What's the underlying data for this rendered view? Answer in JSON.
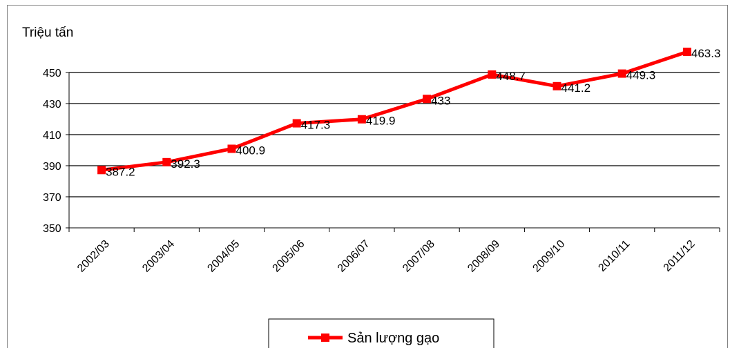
{
  "chart_data": {
    "type": "line",
    "ylabel": "Triệu tấn",
    "xlabel": "",
    "title": "",
    "categories": [
      "2002/03",
      "2003/04",
      "2004/05",
      "2005/06",
      "2006/07",
      "2007/08",
      "2008/09",
      "2009/10",
      "2010/11",
      "2011/12"
    ],
    "series": [
      {
        "name": "Sản lượng gạo",
        "values": [
          387.2,
          392.3,
          400.9,
          417.3,
          419.9,
          433,
          448.7,
          441.2,
          449.3,
          463.3
        ],
        "labels": [
          "387.2",
          "392.3",
          "400.9",
          "417.3",
          "419.9",
          "433",
          "448.7",
          "441.2",
          "449.3",
          "463.3"
        ],
        "color": "#ff0000",
        "marker": "square"
      }
    ],
    "ylim": [
      350,
      450
    ],
    "yticks": [
      350,
      370,
      390,
      410,
      430,
      450
    ],
    "yticklabels": [
      "350",
      "370",
      "390",
      "410",
      "430",
      "450"
    ],
    "grid": true,
    "legend_position": "bottom"
  }
}
